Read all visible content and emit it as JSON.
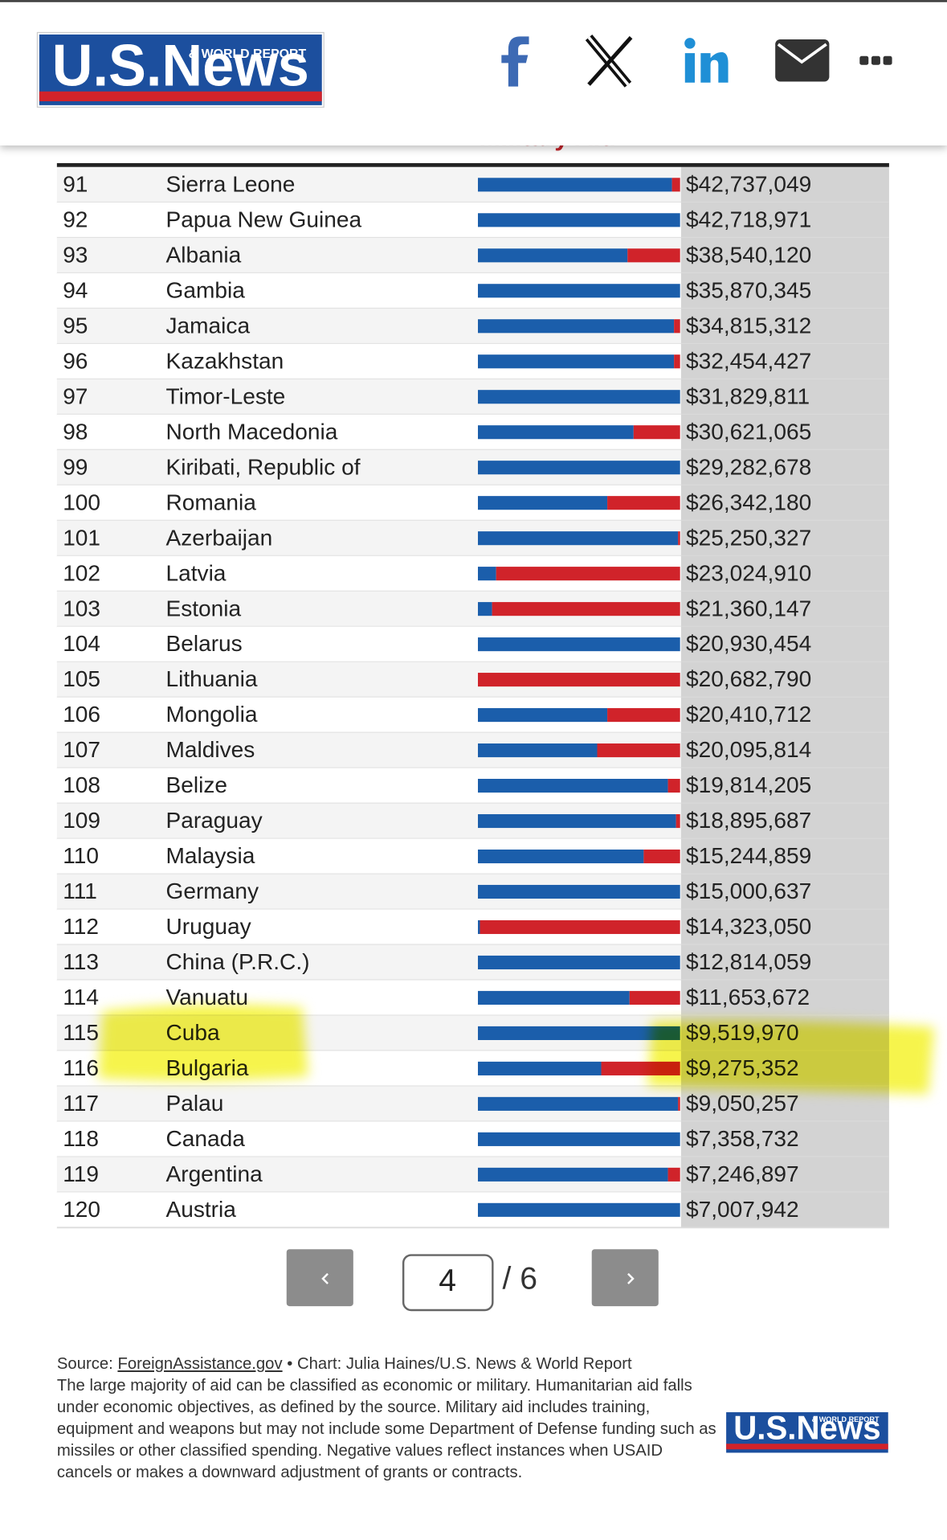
{
  "logo": {
    "name": "U.S.News",
    "tagline": "& WORLD REPORT"
  },
  "legend_military": "Military Aid",
  "rows": [
    {
      "rank": 91,
      "country": "Sierra Leone",
      "total": "$42,737,049",
      "economic_share": 96
    },
    {
      "rank": 92,
      "country": "Papua New Guinea",
      "total": "$42,718,971",
      "economic_share": 100
    },
    {
      "rank": 93,
      "country": "Albania",
      "total": "$38,540,120",
      "economic_share": 74
    },
    {
      "rank": 94,
      "country": "Gambia",
      "total": "$35,870,345",
      "economic_share": 100
    },
    {
      "rank": 95,
      "country": "Jamaica",
      "total": "$34,815,312",
      "economic_share": 97
    },
    {
      "rank": 96,
      "country": "Kazakhstan",
      "total": "$32,454,427",
      "economic_share": 97
    },
    {
      "rank": 97,
      "country": "Timor-Leste",
      "total": "$31,829,811",
      "economic_share": 100
    },
    {
      "rank": 98,
      "country": "North Macedonia",
      "total": "$30,621,065",
      "economic_share": 77
    },
    {
      "rank": 99,
      "country": "Kiribati, Republic of",
      "total": "$29,282,678",
      "economic_share": 100
    },
    {
      "rank": 100,
      "country": "Romania",
      "total": "$26,342,180",
      "economic_share": 64
    },
    {
      "rank": 101,
      "country": "Azerbaijan",
      "total": "$25,250,327",
      "economic_share": 99
    },
    {
      "rank": 102,
      "country": "Latvia",
      "total": "$23,024,910",
      "economic_share": 9
    },
    {
      "rank": 103,
      "country": "Estonia",
      "total": "$21,360,147",
      "economic_share": 7
    },
    {
      "rank": 104,
      "country": "Belarus",
      "total": "$20,930,454",
      "economic_share": 100
    },
    {
      "rank": 105,
      "country": "Lithuania",
      "total": "$20,682,790",
      "economic_share": 0
    },
    {
      "rank": 106,
      "country": "Mongolia",
      "total": "$20,410,712",
      "economic_share": 64
    },
    {
      "rank": 107,
      "country": "Maldives",
      "total": "$20,095,814",
      "economic_share": 59
    },
    {
      "rank": 108,
      "country": "Belize",
      "total": "$19,814,205",
      "economic_share": 94
    },
    {
      "rank": 109,
      "country": "Paraguay",
      "total": "$18,895,687",
      "economic_share": 98
    },
    {
      "rank": 110,
      "country": "Malaysia",
      "total": "$15,244,859",
      "economic_share": 82
    },
    {
      "rank": 111,
      "country": "Germany",
      "total": "$15,000,637",
      "economic_share": 100
    },
    {
      "rank": 112,
      "country": "Uruguay",
      "total": "$14,323,050",
      "economic_share": 1
    },
    {
      "rank": 113,
      "country": "China (P.R.C.)",
      "total": "$12,814,059",
      "economic_share": 100
    },
    {
      "rank": 114,
      "country": "Vanuatu",
      "total": "$11,653,672",
      "economic_share": 75
    },
    {
      "rank": 115,
      "country": "Cuba",
      "total": "$9,519,970",
      "economic_share": 100
    },
    {
      "rank": 116,
      "country": "Bulgaria",
      "total": "$9,275,352",
      "economic_share": 61
    },
    {
      "rank": 117,
      "country": "Palau",
      "total": "$9,050,257",
      "economic_share": 99
    },
    {
      "rank": 118,
      "country": "Canada",
      "total": "$7,358,732",
      "economic_share": 100
    },
    {
      "rank": 119,
      "country": "Argentina",
      "total": "$7,246,897",
      "economic_share": 94
    },
    {
      "rank": 120,
      "country": "Austria",
      "total": "$7,007,942",
      "economic_share": 100
    }
  ],
  "pagination": {
    "current": 4,
    "of": "/ 6"
  },
  "footer": {
    "source_label": "Source:",
    "source_link": "ForeignAssistance.gov",
    "credit": "• Chart: Julia Haines/U.S. News & World Report",
    "note": "The large majority of aid can be classified as economic or military. Humanitarian aid falls under economic objectives, as defined by the source. Military aid includes training, equipment and weapons but may not include some Department of Defense funding such as missiles or other classified spending. Negative values reflect instances when USAID cancels or makes a downward adjustment of grants or contracts."
  }
}
